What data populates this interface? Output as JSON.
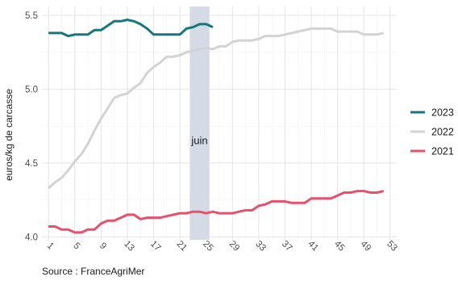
{
  "chart_data": {
    "type": "line",
    "title": "",
    "xlabel": "",
    "ylabel": "euros/kg de carcasse",
    "caption": "Source : FranceAgriMer",
    "x_ticks": [
      1,
      5,
      9,
      13,
      17,
      21,
      25,
      29,
      33,
      37,
      41,
      45,
      49,
      53
    ],
    "y_ticks": [
      4.0,
      4.5,
      5.0,
      5.5
    ],
    "y_tick_labels": [
      "4.0",
      "4.5",
      "5.0",
      "5.5"
    ],
    "xlim": [
      0,
      54
    ],
    "ylim": [
      3.98,
      5.56
    ],
    "grid": true,
    "legend_position": "right",
    "highlight": {
      "label": "juin",
      "x_start": 22.5,
      "x_end": 25.5,
      "label_y": 4.65,
      "color": "#d5dbe6"
    },
    "series": [
      {
        "name": "2023",
        "color": "#16787c",
        "x": [
          1,
          2,
          3,
          4,
          5,
          6,
          7,
          8,
          9,
          10,
          11,
          12,
          13,
          14,
          15,
          16,
          17,
          18,
          19,
          20,
          21,
          22,
          23,
          24,
          25,
          26
        ],
        "y": [
          5.38,
          5.38,
          5.38,
          5.36,
          5.37,
          5.37,
          5.37,
          5.4,
          5.4,
          5.43,
          5.46,
          5.46,
          5.47,
          5.46,
          5.44,
          5.41,
          5.37,
          5.37,
          5.37,
          5.37,
          5.37,
          5.41,
          5.42,
          5.44,
          5.44,
          5.42
        ]
      },
      {
        "name": "2022",
        "color": "#d3d3d3",
        "x": [
          1,
          2,
          3,
          4,
          5,
          6,
          7,
          8,
          9,
          10,
          11,
          12,
          13,
          14,
          15,
          16,
          17,
          18,
          19,
          20,
          21,
          22,
          23,
          24,
          25,
          26,
          27,
          28,
          29,
          30,
          31,
          32,
          33,
          34,
          35,
          36,
          37,
          38,
          39,
          40,
          41,
          42,
          43,
          44,
          45,
          46,
          47,
          48,
          49,
          50,
          51,
          52
        ],
        "y": [
          4.33,
          4.37,
          4.4,
          4.45,
          4.51,
          4.56,
          4.63,
          4.72,
          4.8,
          4.87,
          4.94,
          4.96,
          4.97,
          5.01,
          5.04,
          5.11,
          5.15,
          5.18,
          5.22,
          5.22,
          5.23,
          5.25,
          5.26,
          5.27,
          5.28,
          5.27,
          5.29,
          5.29,
          5.32,
          5.33,
          5.33,
          5.33,
          5.34,
          5.36,
          5.36,
          5.36,
          5.37,
          5.38,
          5.39,
          5.4,
          5.41,
          5.41,
          5.41,
          5.41,
          5.39,
          5.39,
          5.39,
          5.39,
          5.37,
          5.37,
          5.37,
          5.38
        ]
      },
      {
        "name": "2021",
        "color": "#e8506c",
        "x": [
          1,
          2,
          3,
          4,
          5,
          6,
          7,
          8,
          9,
          10,
          11,
          12,
          13,
          14,
          15,
          16,
          17,
          18,
          19,
          20,
          21,
          22,
          23,
          24,
          25,
          26,
          27,
          28,
          29,
          30,
          31,
          32,
          33,
          34,
          35,
          36,
          37,
          38,
          39,
          40,
          41,
          42,
          43,
          44,
          45,
          46,
          47,
          48,
          49,
          50,
          51,
          52
        ],
        "y": [
          4.07,
          4.07,
          4.05,
          4.05,
          4.03,
          4.03,
          4.05,
          4.05,
          4.09,
          4.11,
          4.11,
          4.13,
          4.15,
          4.15,
          4.12,
          4.13,
          4.13,
          4.13,
          4.14,
          4.15,
          4.16,
          4.16,
          4.17,
          4.17,
          4.16,
          4.17,
          4.16,
          4.16,
          4.16,
          4.17,
          4.18,
          4.18,
          4.21,
          4.22,
          4.24,
          4.24,
          4.24,
          4.23,
          4.23,
          4.23,
          4.26,
          4.26,
          4.26,
          4.26,
          4.28,
          4.3,
          4.3,
          4.31,
          4.31,
          4.3,
          4.3,
          4.31
        ]
      }
    ]
  }
}
